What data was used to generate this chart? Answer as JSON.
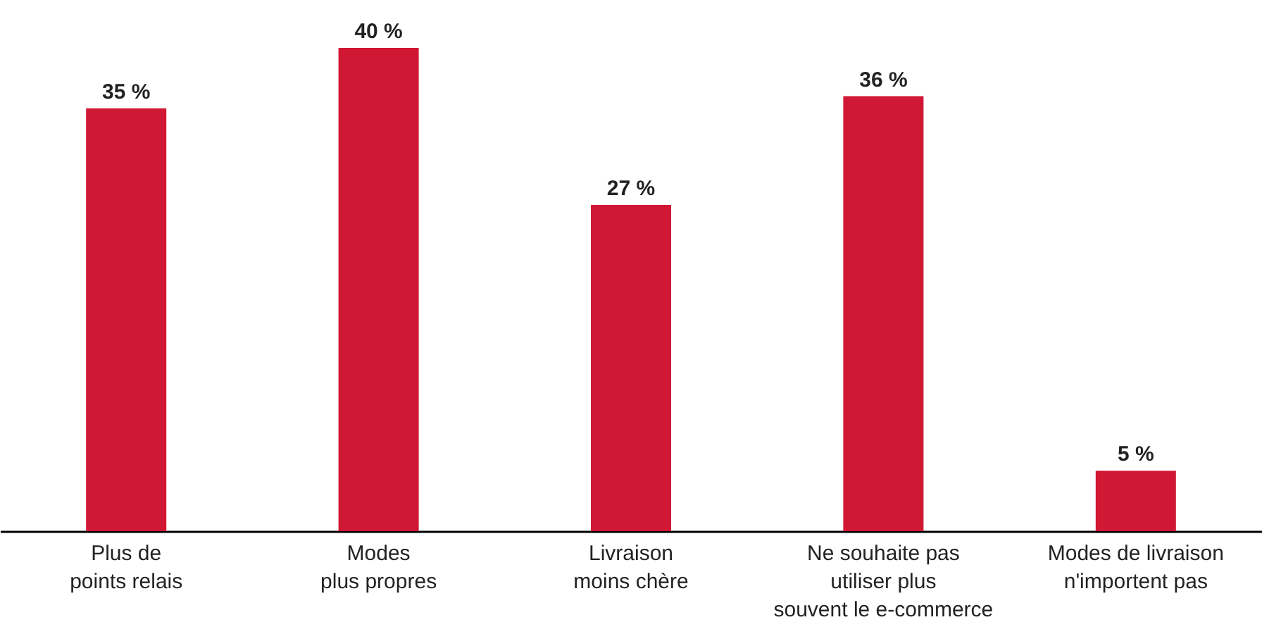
{
  "chart_data": {
    "type": "bar",
    "categories": [
      "Plus de\npoints relais",
      "Modes\nplus propres",
      "Livraison\nmoins chère",
      "Ne souhaite pas\nutiliser plus\nsouvent le e-commerce",
      "Modes de livraison\nn'importent pas"
    ],
    "values": [
      35,
      40,
      27,
      36,
      5
    ],
    "value_labels": [
      "35 %",
      "40 %",
      "27 %",
      "36 %",
      "5 %"
    ],
    "color": "#d01733"
  }
}
